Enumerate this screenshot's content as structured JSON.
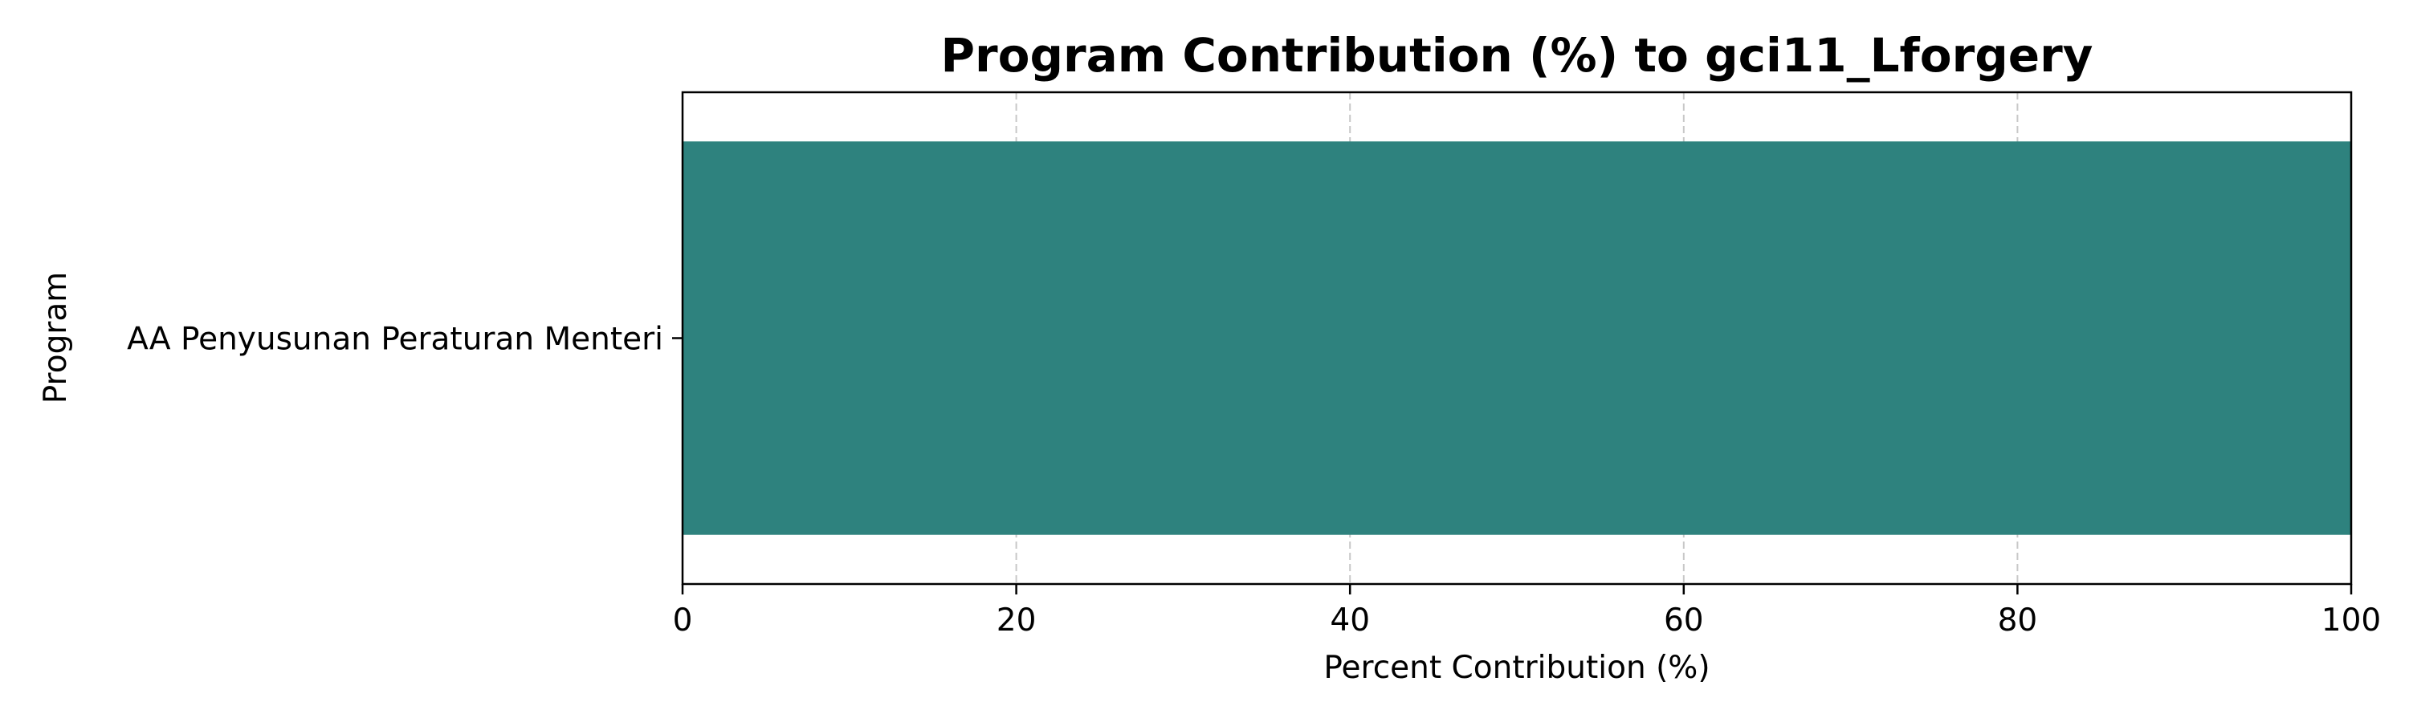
{
  "chart_data": {
    "type": "bar",
    "orientation": "horizontal",
    "title": "Program Contribution (%) to gci11_Lforgery",
    "xlabel": "Percent Contribution (%)",
    "ylabel": "Program",
    "categories": [
      "AA Penyusunan Peraturan Menteri"
    ],
    "values": [
      100
    ],
    "xlim": [
      0,
      100
    ],
    "xticks": [
      "0",
      "20",
      "40",
      "60",
      "80",
      "100"
    ],
    "grid": "x, dashed",
    "bar_color": "#2e827e"
  }
}
